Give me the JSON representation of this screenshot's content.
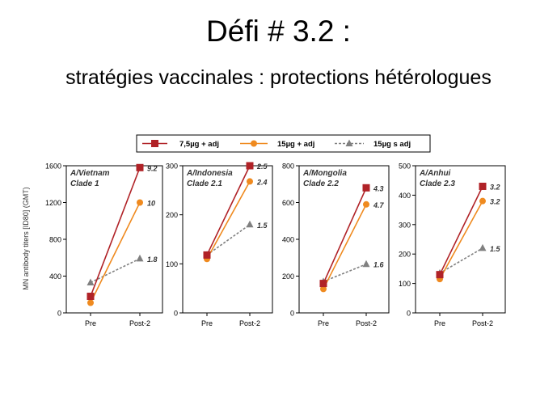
{
  "slide": {
    "title": "Défi # 3.2 :",
    "subtitle": "stratégies vaccinales : protections hétérologues"
  },
  "colors": {
    "red": "#b02227",
    "orange": "#ef8a1f",
    "gray": "#808080",
    "axis": "#000000"
  },
  "legend": {
    "placement": "top",
    "entries": [
      {
        "label": "7,5µg + adj",
        "color": "#b02227",
        "marker": "square",
        "dash": false
      },
      {
        "label": "15µg + adj",
        "color": "#ef8a1f",
        "marker": "circle",
        "dash": false
      },
      {
        "label": "15µg s adj",
        "color": "#808080",
        "marker": "triangle",
        "dash": true
      }
    ]
  },
  "chart_data": [
    {
      "type": "line",
      "ylabel": "MN antibody titers [ID80] (GMT)",
      "panel_title": [
        "A/Vietnam",
        "Clade 1"
      ],
      "categories": [
        "Pre",
        "Post-2"
      ],
      "ylim": [
        0,
        1600
      ],
      "yticks": [
        0,
        400,
        800,
        1200,
        1600
      ],
      "grid": false,
      "series": [
        {
          "name": "7,5µg + adj",
          "values": [
            180,
            1580
          ],
          "label": "9.2"
        },
        {
          "name": "15µg + adj",
          "values": [
            110,
            1200
          ],
          "label": "10"
        },
        {
          "name": "15µg s adj",
          "values": [
            330,
            590
          ],
          "label": "1.8"
        }
      ]
    },
    {
      "type": "line",
      "ylabel": "",
      "panel_title": [
        "A/Indonesia",
        "Clade 2.1"
      ],
      "categories": [
        "Pre",
        "Post-2"
      ],
      "ylim": [
        0,
        300
      ],
      "yticks": [
        0,
        100,
        200,
        300
      ],
      "grid": false,
      "series": [
        {
          "name": "7,5µg + adj",
          "values": [
            118,
            300
          ],
          "label": "2.5"
        },
        {
          "name": "15µg + adj",
          "values": [
            110,
            268
          ],
          "label": "2.4"
        },
        {
          "name": "15µg s adj",
          "values": [
            118,
            180
          ],
          "label": "1.5"
        }
      ]
    },
    {
      "type": "line",
      "ylabel": "",
      "panel_title": [
        "A/Mongolia",
        "Clade 2.2"
      ],
      "categories": [
        "Pre",
        "Post-2"
      ],
      "ylim": [
        0,
        800
      ],
      "yticks": [
        0,
        200,
        400,
        600,
        800
      ],
      "grid": false,
      "series": [
        {
          "name": "7,5µg + adj",
          "values": [
            160,
            680
          ],
          "label": "4.3"
        },
        {
          "name": "15µg + adj",
          "values": [
            130,
            590
          ],
          "label": "4.7"
        },
        {
          "name": "15µg s adj",
          "values": [
            170,
            265
          ],
          "label": "1.6"
        }
      ]
    },
    {
      "type": "line",
      "ylabel": "",
      "panel_title": [
        "A/Anhui",
        "Clade 2.3"
      ],
      "categories": [
        "Pre",
        "Post-2"
      ],
      "ylim": [
        0,
        500
      ],
      "yticks": [
        0,
        100,
        200,
        300,
        400,
        500
      ],
      "grid": false,
      "series": [
        {
          "name": "7,5µg + adj",
          "values": [
            130,
            430
          ],
          "label": "3.2"
        },
        {
          "name": "15µg + adj",
          "values": [
            115,
            380
          ],
          "label": "3.2"
        },
        {
          "name": "15µg s adj",
          "values": [
            135,
            220
          ],
          "label": "1.5"
        }
      ]
    }
  ]
}
